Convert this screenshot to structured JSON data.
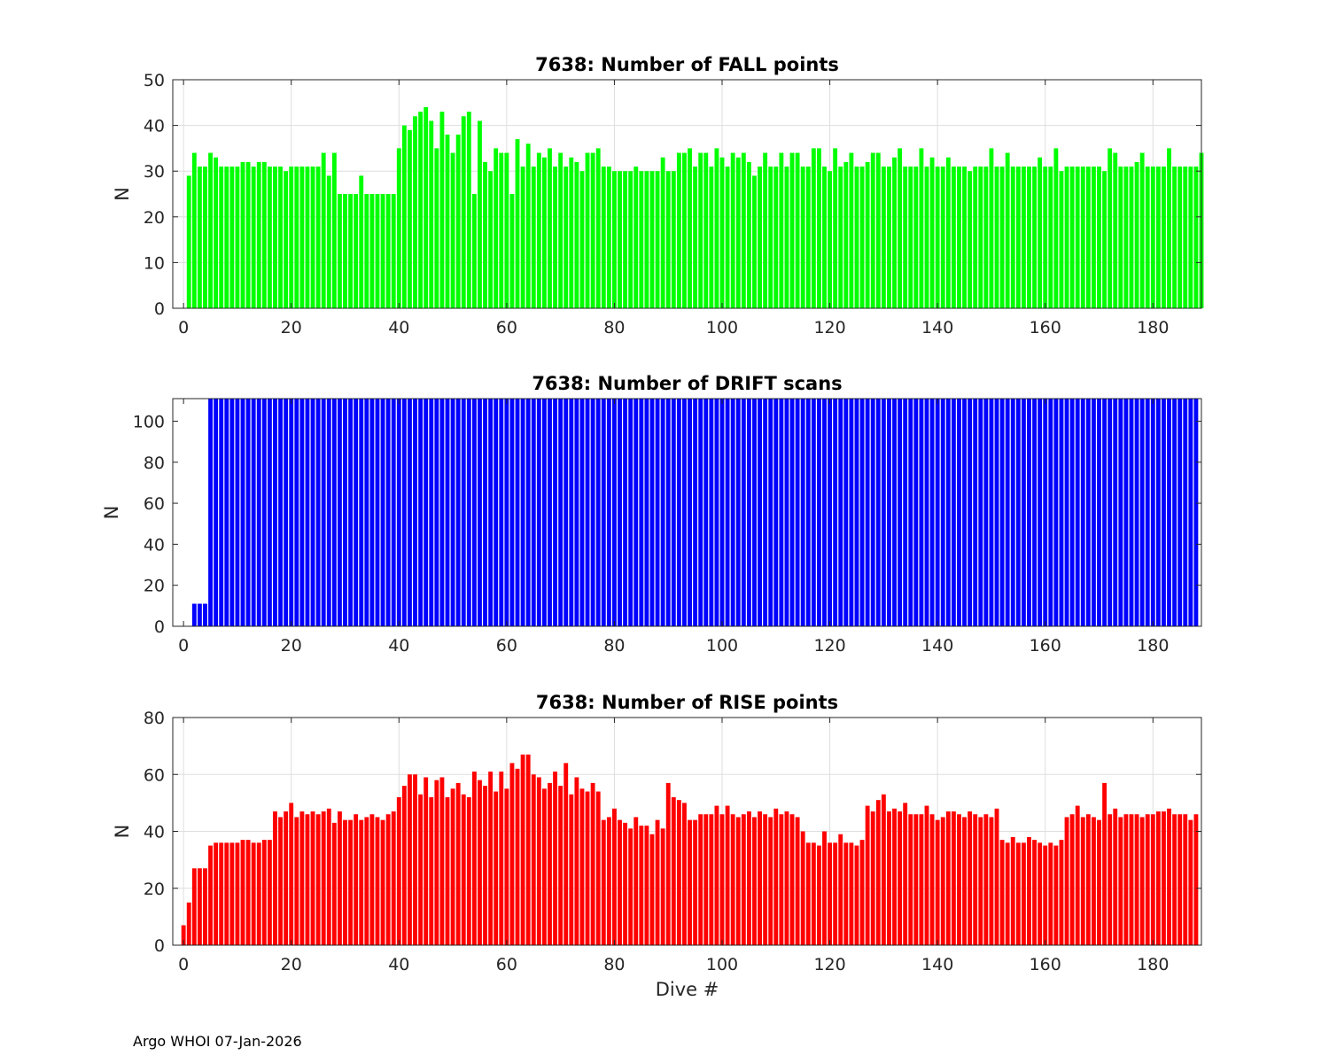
{
  "footer": "Argo WHOI 07-Jan-2026",
  "chart_data": [
    {
      "type": "bar",
      "title": "7638: Number of FALL points",
      "ylabel": "N",
      "xlabel": "",
      "color": "#00ff00",
      "xlim": [
        -2,
        189
      ],
      "ylim": [
        0,
        50
      ],
      "xticks": [
        0,
        20,
        40,
        60,
        80,
        100,
        120,
        140,
        160,
        180
      ],
      "yticks": [
        0,
        10,
        20,
        30,
        40,
        50
      ],
      "grid": true,
      "x_start": 1,
      "values": [
        29,
        34,
        31,
        31,
        34,
        33,
        31,
        31,
        31,
        31,
        32,
        32,
        31,
        32,
        32,
        31,
        31,
        31,
        30,
        31,
        31,
        31,
        31,
        31,
        31,
        34,
        29,
        34,
        25,
        25,
        25,
        25,
        29,
        25,
        25,
        25,
        25,
        25,
        25,
        35,
        40,
        39,
        42,
        43,
        44,
        41,
        35,
        43,
        38,
        34,
        38,
        42,
        43,
        25,
        41,
        32,
        30,
        35,
        34,
        34,
        25,
        37,
        31,
        36,
        31,
        34,
        33,
        35,
        31,
        34,
        31,
        33,
        32,
        30,
        34,
        34,
        35,
        31,
        31,
        30,
        30,
        30,
        30,
        31,
        30,
        30,
        30,
        30,
        33,
        30,
        30,
        34,
        34,
        35,
        31,
        34,
        34,
        31,
        35,
        33,
        31,
        34,
        33,
        34,
        32,
        29,
        31,
        34,
        31,
        31,
        34,
        31,
        34,
        34,
        31,
        31,
        35,
        35,
        31,
        30,
        35,
        31,
        32,
        34,
        31,
        31,
        32,
        34,
        34,
        31,
        31,
        33,
        35,
        31,
        31,
        31,
        35,
        31,
        33,
        31,
        31,
        33,
        31,
        31,
        31,
        30,
        31,
        31,
        31,
        35,
        31,
        31,
        34,
        31,
        31,
        31,
        31,
        31,
        33,
        31,
        31,
        35,
        30,
        31,
        31,
        31,
        31,
        31,
        31,
        31,
        30,
        35,
        34,
        31,
        31,
        31,
        32,
        34,
        31,
        31,
        31,
        31,
        35,
        31,
        31,
        31,
        31,
        31,
        34
      ]
    },
    {
      "type": "bar",
      "title": "7638: Number of DRIFT scans",
      "ylabel": "N",
      "xlabel": "",
      "color": "#0000ff",
      "xlim": [
        -2,
        189
      ],
      "ylim": [
        0,
        111
      ],
      "xticks": [
        0,
        20,
        40,
        60,
        80,
        100,
        120,
        140,
        160,
        180
      ],
      "yticks": [
        0,
        20,
        40,
        60,
        80,
        100
      ],
      "grid": false,
      "x_start": 2,
      "values": [
        11,
        11,
        11,
        111,
        111,
        111,
        111,
        111,
        111,
        111,
        111,
        111,
        111,
        111,
        111,
        111,
        111,
        111,
        111,
        111,
        111,
        111,
        111,
        111,
        111,
        111,
        111,
        111,
        111,
        111,
        111,
        111,
        111,
        111,
        111,
        111,
        111,
        111,
        111,
        111,
        111,
        111,
        111,
        111,
        111,
        111,
        111,
        111,
        111,
        111,
        111,
        111,
        111,
        111,
        111,
        111,
        111,
        111,
        111,
        111,
        111,
        111,
        111,
        111,
        111,
        111,
        111,
        111,
        111,
        111,
        111,
        111,
        111,
        111,
        111,
        111,
        111,
        111,
        111,
        111,
        111,
        111,
        111,
        111,
        111,
        111,
        111,
        111,
        111,
        111,
        111,
        111,
        111,
        111,
        111,
        111,
        111,
        111,
        111,
        111,
        111,
        111,
        111,
        111,
        111,
        111,
        111,
        111,
        111,
        111,
        111,
        111,
        111,
        111,
        111,
        111,
        111,
        111,
        111,
        111,
        111,
        111,
        111,
        111,
        111,
        111,
        111,
        111,
        111,
        111,
        111,
        111,
        111,
        111,
        111,
        111,
        111,
        111,
        111,
        111,
        111,
        111,
        111,
        111,
        111,
        111,
        111,
        111,
        111,
        111,
        111,
        111,
        111,
        111,
        111,
        111,
        111,
        111,
        111,
        111,
        111,
        111,
        111,
        111,
        111,
        111,
        111,
        111,
        111,
        111,
        111,
        111,
        111,
        111,
        111,
        111,
        111,
        111,
        111,
        111,
        111,
        111,
        111,
        111,
        111,
        111,
        111
      ]
    },
    {
      "type": "bar",
      "title": "7638: Number of RISE points",
      "ylabel": "N",
      "xlabel": "Dive #",
      "color": "#ff0000",
      "xlim": [
        -2,
        189
      ],
      "ylim": [
        0,
        80
      ],
      "xticks": [
        0,
        20,
        40,
        60,
        80,
        100,
        120,
        140,
        160,
        180
      ],
      "yticks": [
        0,
        20,
        40,
        60,
        80
      ],
      "grid": true,
      "x_start": 0,
      "values": [
        7,
        15,
        27,
        27,
        27,
        35,
        36,
        36,
        36,
        36,
        36,
        37,
        37,
        36,
        36,
        37,
        37,
        47,
        45,
        47,
        50,
        45,
        47,
        46,
        47,
        46,
        47,
        48,
        43,
        47,
        44,
        44,
        46,
        44,
        45,
        46,
        45,
        44,
        46,
        47,
        52,
        56,
        60,
        60,
        53,
        59,
        52,
        58,
        59,
        52,
        55,
        57,
        53,
        52,
        61,
        58,
        56,
        61,
        54,
        61,
        55,
        64,
        62,
        67,
        67,
        60,
        59,
        55,
        57,
        61,
        56,
        64,
        53,
        59,
        55,
        54,
        57,
        54,
        44,
        45,
        48,
        44,
        43,
        41,
        45,
        42,
        42,
        39,
        44,
        41,
        57,
        52,
        51,
        50,
        44,
        44,
        46,
        46,
        46,
        49,
        46,
        49,
        46,
        45,
        46,
        47,
        45,
        47,
        46,
        45,
        48,
        46,
        47,
        46,
        45,
        40,
        36,
        36,
        35,
        40,
        36,
        36,
        39,
        36,
        36,
        35,
        37,
        49,
        47,
        51,
        53,
        47,
        48,
        47,
        50,
        46,
        46,
        46,
        49,
        46,
        44,
        45,
        47,
        47,
        46,
        45,
        47,
        46,
        45,
        46,
        45,
        48,
        37,
        36,
        38,
        36,
        36,
        38,
        37,
        36,
        35,
        36,
        35,
        37,
        45,
        46,
        49,
        45,
        46,
        45,
        44,
        57,
        46,
        48,
        45,
        46,
        46,
        46,
        45,
        46,
        46,
        47,
        47,
        48,
        46,
        46,
        46,
        44,
        46
      ]
    }
  ]
}
